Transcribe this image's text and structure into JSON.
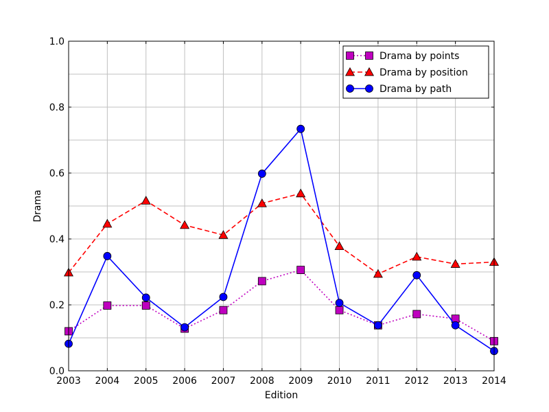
{
  "chart_data": {
    "type": "line",
    "title": "",
    "xlabel": "Edition",
    "ylabel": "Drama",
    "x": [
      2003,
      2004,
      2005,
      2006,
      2007,
      2008,
      2009,
      2010,
      2011,
      2012,
      2013,
      2014
    ],
    "xticks": [
      "2003",
      "2004",
      "2005",
      "2006",
      "2007",
      "2008",
      "2009",
      "2010",
      "2011",
      "2012",
      "2013",
      "2014"
    ],
    "yticks": [
      "0.0",
      "0.2",
      "0.4",
      "0.6",
      "0.8",
      "1.0"
    ],
    "xlim": [
      2003,
      2014
    ],
    "ylim": [
      0.0,
      1.0
    ],
    "grid": true,
    "legend_position": "top-right",
    "series": [
      {
        "name": "Drama by points",
        "color": "#bf00bf",
        "marker_fill": "#bf00bf",
        "line_style": "dotted",
        "marker": "square",
        "values": [
          0.12,
          0.198,
          0.198,
          0.128,
          0.184,
          0.272,
          0.306,
          0.184,
          0.138,
          0.172,
          0.158,
          0.09
        ]
      },
      {
        "name": "Drama by position",
        "color": "#ff0000",
        "marker_fill": "#ff0000",
        "line_style": "dashed",
        "marker": "triangle",
        "values": [
          0.298,
          0.446,
          0.516,
          0.442,
          0.412,
          0.508,
          0.538,
          0.378,
          0.294,
          0.346,
          0.324,
          0.33
        ]
      },
      {
        "name": "Drama by path",
        "color": "#0000ff",
        "marker_fill": "#0000ff",
        "line_style": "solid",
        "marker": "circle",
        "values": [
          0.082,
          0.348,
          0.222,
          0.132,
          0.224,
          0.598,
          0.734,
          0.206,
          0.138,
          0.29,
          0.138,
          0.06
        ]
      }
    ]
  }
}
